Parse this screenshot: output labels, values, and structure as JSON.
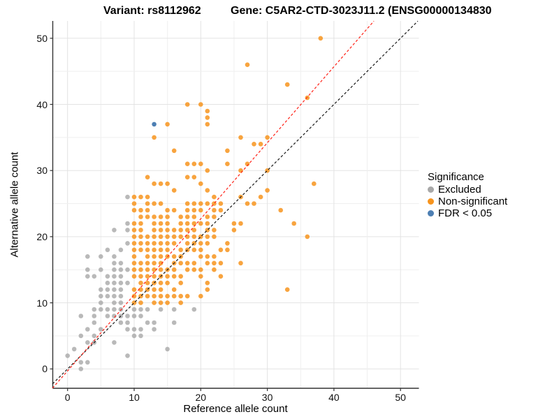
{
  "titles": {
    "left": "Variant: rs8112962",
    "right": "Gene: C5AR2-CTD-3023J11.2 (ENSG00000134830"
  },
  "axes": {
    "x_label": "Reference allele count",
    "y_label": "Alternative allele count",
    "x_tick_labels": [
      "0",
      "10",
      "20",
      "30",
      "40",
      "50"
    ],
    "y_tick_labels": [
      "0",
      "10",
      "20",
      "30",
      "40",
      "50"
    ]
  },
  "legend": {
    "title": "Significance",
    "items": [
      {
        "label": "Excluded",
        "color": "#a8a8a8"
      },
      {
        "label": "Non-significant",
        "color": "#f7941d"
      },
      {
        "label": "FDR < 0.05",
        "color": "#4d7fb3"
      }
    ]
  },
  "chart_data": {
    "type": "scatter",
    "title": "Variant: rs8112962 / Gene: C5AR2-CTD-3023J11.2 (ENSG00000134830",
    "xlabel": "Reference allele count",
    "ylabel": "Alternative allele count",
    "x_ticks": [
      0,
      10,
      20,
      30,
      40,
      50
    ],
    "y_ticks": [
      0,
      10,
      20,
      30,
      40,
      50
    ],
    "x_range": [
      -2.3,
      52.8
    ],
    "y_range": [
      -2.9,
      52.6
    ],
    "grid": "major and minor gridlines every 5 units, light gray, white background",
    "legend_position": "right",
    "series": [
      {
        "name": "Excluded",
        "color": "#a8a8a8",
        "points": [
          [
            2,
            0
          ],
          [
            2,
            1
          ],
          [
            3,
            1
          ],
          [
            0,
            2
          ],
          [
            9,
            2
          ],
          [
            1,
            3
          ],
          [
            15,
            3
          ],
          [
            3,
            4
          ],
          [
            4,
            4
          ],
          [
            7,
            4
          ],
          [
            2,
            5
          ],
          [
            4,
            5
          ],
          [
            10,
            5
          ],
          [
            11,
            5
          ],
          [
            3,
            6
          ],
          [
            5,
            6
          ],
          [
            9,
            6
          ],
          [
            10,
            6
          ],
          [
            11,
            6
          ],
          [
            13,
            6
          ],
          [
            4,
            7
          ],
          [
            8,
            7
          ],
          [
            9,
            7
          ],
          [
            12,
            7
          ],
          [
            13,
            7
          ],
          [
            16,
            7
          ],
          [
            2,
            8
          ],
          [
            4,
            8
          ],
          [
            6,
            8
          ],
          [
            7,
            8
          ],
          [
            8,
            8
          ],
          [
            9,
            8
          ],
          [
            10,
            8
          ],
          [
            11,
            8
          ],
          [
            4,
            9
          ],
          [
            5,
            9
          ],
          [
            6,
            9
          ],
          [
            7,
            9
          ],
          [
            8,
            9
          ],
          [
            10,
            9
          ],
          [
            11,
            9
          ],
          [
            12,
            9
          ],
          [
            14,
            9
          ],
          [
            16,
            9
          ],
          [
            19,
            9
          ],
          [
            5,
            10
          ],
          [
            7,
            10
          ],
          [
            8,
            10
          ],
          [
            5,
            11
          ],
          [
            6,
            11
          ],
          [
            7,
            11
          ],
          [
            8,
            11
          ],
          [
            5,
            12
          ],
          [
            6,
            12
          ],
          [
            7,
            12
          ],
          [
            8,
            12
          ],
          [
            6,
            13
          ],
          [
            7,
            13
          ],
          [
            8,
            13
          ],
          [
            9,
            13
          ],
          [
            3,
            14
          ],
          [
            4,
            14
          ],
          [
            6,
            14
          ],
          [
            7,
            14
          ],
          [
            8,
            14
          ],
          [
            3,
            15
          ],
          [
            5,
            15
          ],
          [
            7,
            15
          ],
          [
            8,
            15
          ],
          [
            9,
            15
          ],
          [
            7,
            16
          ],
          [
            8,
            16
          ],
          [
            3,
            17
          ],
          [
            5,
            17
          ],
          [
            7,
            17
          ],
          [
            6,
            18
          ],
          [
            8,
            18
          ],
          [
            9,
            19
          ],
          [
            7,
            21
          ],
          [
            9,
            21
          ],
          [
            9,
            22
          ],
          [
            9,
            26
          ]
        ]
      },
      {
        "name": "Non-significant",
        "color": "#f7941d",
        "points": [
          [
            10,
            10
          ],
          [
            11,
            10
          ],
          [
            13,
            10
          ],
          [
            14,
            10
          ],
          [
            15,
            10
          ],
          [
            17,
            10
          ],
          [
            10,
            11
          ],
          [
            11,
            11
          ],
          [
            12,
            11
          ],
          [
            13,
            11
          ],
          [
            14,
            11
          ],
          [
            15,
            11
          ],
          [
            16,
            11
          ],
          [
            17,
            11
          ],
          [
            18,
            11
          ],
          [
            20,
            11
          ],
          [
            10,
            12
          ],
          [
            11,
            12
          ],
          [
            12,
            12
          ],
          [
            13,
            12
          ],
          [
            14,
            12
          ],
          [
            16,
            12
          ],
          [
            21,
            12
          ],
          [
            33,
            12
          ],
          [
            11,
            13
          ],
          [
            12,
            13
          ],
          [
            13,
            13
          ],
          [
            14,
            13
          ],
          [
            15,
            13
          ],
          [
            17,
            13
          ],
          [
            21,
            13
          ],
          [
            10,
            14
          ],
          [
            11,
            14
          ],
          [
            12,
            14
          ],
          [
            13,
            14
          ],
          [
            14,
            14
          ],
          [
            15,
            14
          ],
          [
            16,
            14
          ],
          [
            17,
            14
          ],
          [
            20,
            14
          ],
          [
            23,
            14
          ],
          [
            10,
            15
          ],
          [
            11,
            15
          ],
          [
            12,
            15
          ],
          [
            13,
            15
          ],
          [
            14,
            15
          ],
          [
            15,
            15
          ],
          [
            16,
            15
          ],
          [
            18,
            15
          ],
          [
            19,
            15
          ],
          [
            20,
            15
          ],
          [
            22,
            15
          ],
          [
            10,
            16
          ],
          [
            11,
            16
          ],
          [
            12,
            16
          ],
          [
            13,
            16
          ],
          [
            14,
            16
          ],
          [
            16,
            16
          ],
          [
            17,
            16
          ],
          [
            18,
            16
          ],
          [
            19,
            16
          ],
          [
            21,
            16
          ],
          [
            22,
            16
          ],
          [
            23,
            16
          ],
          [
            26,
            16
          ],
          [
            10,
            17
          ],
          [
            12,
            17
          ],
          [
            13,
            17
          ],
          [
            14,
            17
          ],
          [
            15,
            17
          ],
          [
            16,
            17
          ],
          [
            17,
            17
          ],
          [
            20,
            17
          ],
          [
            21,
            17
          ],
          [
            22,
            17
          ],
          [
            10,
            18
          ],
          [
            11,
            18
          ],
          [
            12,
            18
          ],
          [
            13,
            18
          ],
          [
            14,
            18
          ],
          [
            15,
            18
          ],
          [
            17,
            18
          ],
          [
            18,
            18
          ],
          [
            19,
            18
          ],
          [
            20,
            18
          ],
          [
            23,
            18
          ],
          [
            24,
            18
          ],
          [
            10,
            19
          ],
          [
            11,
            19
          ],
          [
            12,
            19
          ],
          [
            13,
            19
          ],
          [
            14,
            19
          ],
          [
            15,
            19
          ],
          [
            16,
            19
          ],
          [
            18,
            19
          ],
          [
            19,
            19
          ],
          [
            20,
            19
          ],
          [
            21,
            19
          ],
          [
            24,
            19
          ],
          [
            10,
            20
          ],
          [
            11,
            20
          ],
          [
            12,
            20
          ],
          [
            13,
            20
          ],
          [
            14,
            20
          ],
          [
            15,
            20
          ],
          [
            16,
            20
          ],
          [
            17,
            20
          ],
          [
            18,
            20
          ],
          [
            19,
            20
          ],
          [
            20,
            20
          ],
          [
            21,
            20
          ],
          [
            22,
            20
          ],
          [
            36,
            20
          ],
          [
            10,
            21
          ],
          [
            11,
            21
          ],
          [
            13,
            21
          ],
          [
            14,
            21
          ],
          [
            15,
            21
          ],
          [
            16,
            21
          ],
          [
            17,
            21
          ],
          [
            18,
            21
          ],
          [
            19,
            21
          ],
          [
            21,
            21
          ],
          [
            22,
            21
          ],
          [
            25,
            21
          ],
          [
            10,
            22
          ],
          [
            11,
            22
          ],
          [
            13,
            22
          ],
          [
            14,
            22
          ],
          [
            15,
            22
          ],
          [
            17,
            22
          ],
          [
            18,
            22
          ],
          [
            19,
            22
          ],
          [
            20,
            22
          ],
          [
            21,
            22
          ],
          [
            25,
            22
          ],
          [
            26,
            22
          ],
          [
            34,
            22
          ],
          [
            11,
            23
          ],
          [
            12,
            23
          ],
          [
            13,
            23
          ],
          [
            14,
            23
          ],
          [
            15,
            23
          ],
          [
            17,
            23
          ],
          [
            18,
            23
          ],
          [
            19,
            23
          ],
          [
            21,
            23
          ],
          [
            22,
            23
          ],
          [
            10,
            24
          ],
          [
            11,
            24
          ],
          [
            12,
            24
          ],
          [
            15,
            24
          ],
          [
            16,
            24
          ],
          [
            18,
            24
          ],
          [
            19,
            24
          ],
          [
            20,
            24
          ],
          [
            22,
            24
          ],
          [
            23,
            24
          ],
          [
            32,
            24
          ],
          [
            10,
            25
          ],
          [
            12,
            25
          ],
          [
            13,
            25
          ],
          [
            14,
            25
          ],
          [
            18,
            25
          ],
          [
            19,
            25
          ],
          [
            20,
            25
          ],
          [
            21,
            25
          ],
          [
            22,
            25
          ],
          [
            23,
            25
          ],
          [
            27,
            25
          ],
          [
            28,
            25
          ],
          [
            10,
            26
          ],
          [
            11,
            26
          ],
          [
            12,
            26
          ],
          [
            22,
            26
          ],
          [
            26,
            26
          ],
          [
            29,
            26
          ],
          [
            16,
            27
          ],
          [
            21,
            27
          ],
          [
            30,
            27
          ],
          [
            13,
            28
          ],
          [
            14,
            28
          ],
          [
            15,
            28
          ],
          [
            20,
            28
          ],
          [
            37,
            28
          ],
          [
            12,
            29
          ],
          [
            18,
            29
          ],
          [
            19,
            29
          ],
          [
            21,
            30
          ],
          [
            26,
            30
          ],
          [
            30,
            30
          ],
          [
            18,
            31
          ],
          [
            19,
            31
          ],
          [
            20,
            31
          ],
          [
            24,
            31
          ],
          [
            27,
            31
          ],
          [
            16,
            33
          ],
          [
            24,
            33
          ],
          [
            28,
            34
          ],
          [
            29,
            34
          ],
          [
            13,
            35
          ],
          [
            26,
            35
          ],
          [
            30,
            35
          ],
          [
            15,
            37
          ],
          [
            21,
            37
          ],
          [
            21,
            38
          ],
          [
            21,
            39
          ],
          [
            18,
            40
          ],
          [
            20,
            40
          ],
          [
            36,
            41
          ],
          [
            33,
            43
          ],
          [
            27,
            46
          ],
          [
            38,
            50
          ]
        ]
      },
      {
        "name": "FDR < 0.05",
        "color": "#4d7fb3",
        "points": [
          [
            13,
            37
          ]
        ]
      }
    ],
    "lines": [
      {
        "name": "identity",
        "color": "#161616",
        "style": "dashed",
        "slope": 1,
        "intercept": 0
      },
      {
        "name": "fitted",
        "color": "#ff2015",
        "style": "dashed",
        "slope": 1.15,
        "intercept": -0.3
      }
    ]
  }
}
